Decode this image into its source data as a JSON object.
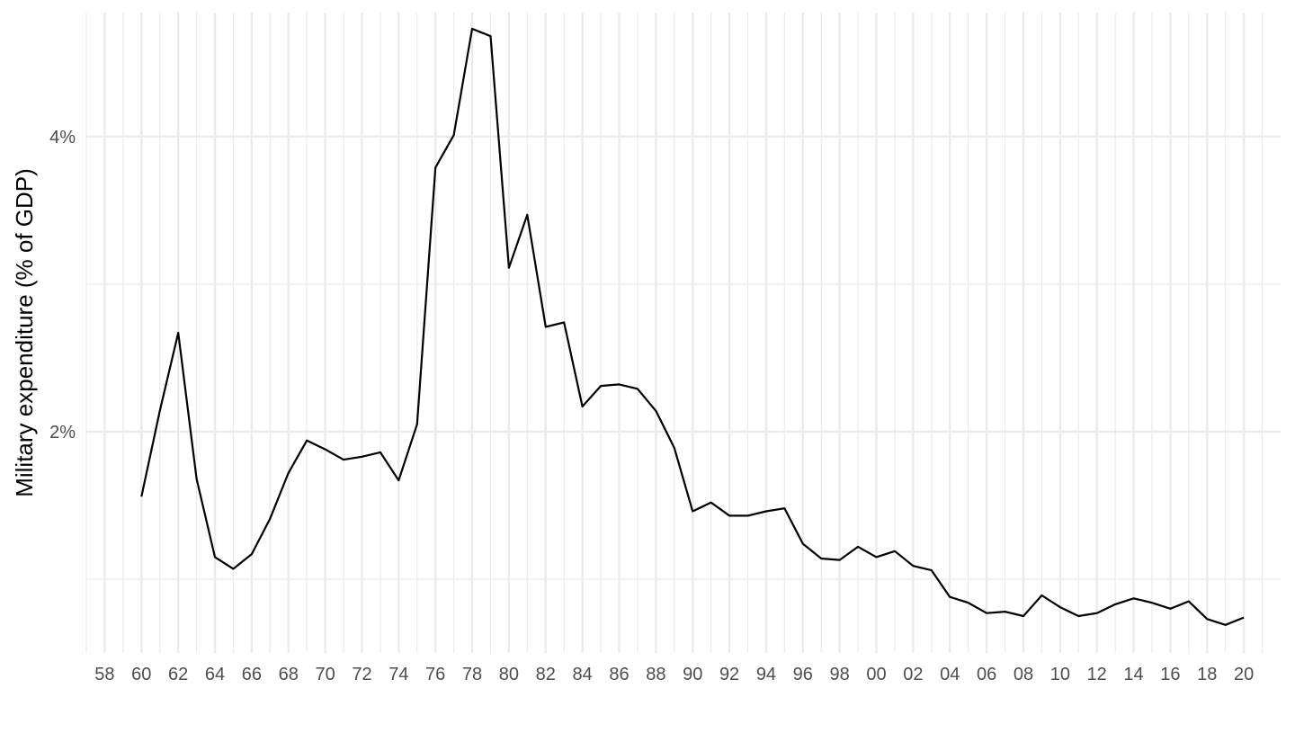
{
  "chart_data": {
    "type": "line",
    "title": "",
    "xlabel": "",
    "ylabel": "Military expenditure (% of GDP)",
    "grid": true,
    "legend": "none",
    "line_color": "#000000",
    "grid_color": "#ebebeb",
    "xlim": [
      1957,
      2022
    ],
    "ylim": [
      0.5,
      4.84
    ],
    "x_major_ticks": [
      1958,
      1960,
      1962,
      1964,
      1966,
      1968,
      1970,
      1972,
      1974,
      1976,
      1978,
      1980,
      1982,
      1984,
      1986,
      1988,
      1990,
      1992,
      1994,
      1996,
      1998,
      2000,
      2002,
      2004,
      2006,
      2008,
      2010,
      2012,
      2014,
      2016,
      2018,
      2020
    ],
    "x_tick_labels": [
      "58",
      "60",
      "62",
      "64",
      "66",
      "68",
      "70",
      "72",
      "74",
      "76",
      "78",
      "80",
      "82",
      "84",
      "86",
      "88",
      "90",
      "92",
      "94",
      "96",
      "98",
      "00",
      "02",
      "04",
      "06",
      "08",
      "10",
      "12",
      "14",
      "16",
      "18",
      "20"
    ],
    "y_major_ticks": [
      2,
      4
    ],
    "y_tick_labels": [
      "2%",
      "4%"
    ],
    "y_minor_ticks": [
      1,
      3
    ],
    "series": [
      {
        "x": [
          1960,
          1961,
          1962,
          1963,
          1964,
          1965,
          1966,
          1967,
          1968,
          1969,
          1970,
          1971,
          1972,
          1973,
          1974,
          1975,
          1976,
          1977,
          1978,
          1979,
          1980,
          1981,
          1982,
          1983,
          1984,
          1985,
          1986,
          1987,
          1988,
          1989,
          1990,
          1991,
          1992,
          1993,
          1994,
          1995,
          1996,
          1997,
          1998,
          1999,
          2000,
          2001,
          2002,
          2003,
          2004,
          2005,
          2006,
          2007,
          2008,
          2009,
          2010,
          2011,
          2012,
          2013,
          2014,
          2015,
          2016,
          2017,
          2018,
          2019,
          2020
        ],
        "values": [
          1.56,
          2.14,
          2.67,
          1.68,
          1.15,
          1.07,
          1.17,
          1.41,
          1.72,
          1.94,
          1.88,
          1.81,
          1.83,
          1.86,
          1.67,
          2.05,
          3.79,
          4.01,
          4.73,
          4.68,
          3.11,
          3.47,
          2.71,
          2.74,
          2.17,
          2.31,
          2.32,
          2.29,
          2.14,
          1.89,
          1.46,
          1.52,
          1.43,
          1.43,
          1.46,
          1.48,
          1.24,
          1.14,
          1.13,
          1.22,
          1.15,
          1.19,
          1.09,
          1.06,
          0.88,
          0.84,
          0.77,
          0.78,
          0.75,
          0.89,
          0.81,
          0.75,
          0.77,
          0.83,
          0.87,
          0.84,
          0.8,
          0.85,
          0.73,
          0.69,
          0.74
        ]
      }
    ]
  }
}
